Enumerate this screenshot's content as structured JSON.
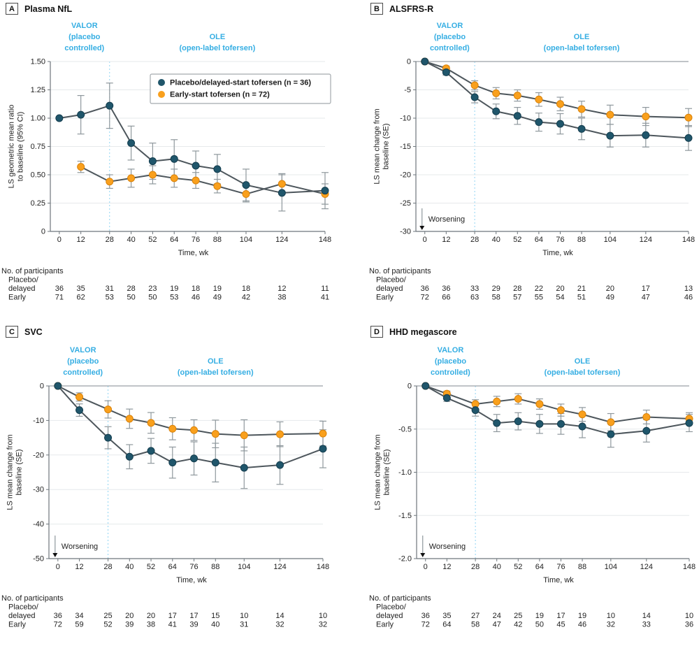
{
  "colors": {
    "phase_label": "#35aee3",
    "phase_divider": "#8fd4f3",
    "series_line": "#4d565c",
    "error_bar": "#8f989d",
    "axis": "#6e767c",
    "grid": "#e6e9eb",
    "zero_line": "#9aa1a7"
  },
  "series_colors": {
    "teal": {
      "fill": "#20566b",
      "stroke": "#143d4e"
    },
    "orange": {
      "fill": "#f9a01d",
      "stroke": "#d9820a"
    }
  },
  "x": {
    "weeks": [
      0,
      12,
      28,
      40,
      52,
      64,
      76,
      88,
      104,
      124,
      148
    ],
    "tick_labels": [
      "0",
      "12",
      "28",
      "40",
      "52",
      "64",
      "76",
      "88",
      "104",
      "124",
      "148"
    ],
    "label": "Time, wk",
    "divider_week": 28
  },
  "phase_labels": {
    "valor_lines": [
      "VALOR",
      "(placebo",
      "controlled)"
    ],
    "ole_lines": [
      "OLE",
      "(open-label tofersen)"
    ]
  },
  "legend": {
    "items": [
      {
        "label": "Placebo/delayed-start tofersen (n = 36)",
        "color_key": "teal"
      },
      {
        "label": "Early-start tofersen (n = 72)",
        "color_key": "orange"
      }
    ]
  },
  "chart_data": [
    {
      "id": "A",
      "title": "Plasma NfL",
      "type": "line",
      "ylabel_lines": [
        "LS geometric mean ratio",
        "to baseline (95% CI)"
      ],
      "ylim": [
        0,
        1.5
      ],
      "ytick_values": [
        1.5,
        1.25,
        1.0,
        0.75,
        0.5,
        0.25,
        0
      ],
      "ytick_labels": [
        "1.50",
        "1.25",
        "1.00",
        "0.75",
        "0.50",
        "0.25",
        "0"
      ],
      "zero_top": false,
      "worsening_label": null,
      "show_legend": true,
      "series": [
        {
          "name": "Placebo/delayed-start tofersen (n = 36)",
          "color_key": "teal",
          "x": [
            0,
            12,
            28,
            40,
            52,
            64,
            76,
            88,
            104,
            124,
            148
          ],
          "y": [
            1.0,
            1.03,
            1.11,
            0.78,
            0.62,
            0.64,
            0.58,
            0.55,
            0.41,
            0.34,
            0.36
          ],
          "err": [
            0,
            0.17,
            0.2,
            0.15,
            0.16,
            0.17,
            0.13,
            0.13,
            0.14,
            0.16,
            0.16
          ]
        },
        {
          "name": "Early-start tofersen (n = 72)",
          "color_key": "orange",
          "x": [
            12,
            28,
            40,
            52,
            64,
            76,
            88,
            104,
            124,
            148
          ],
          "y": [
            0.57,
            0.44,
            0.47,
            0.5,
            0.47,
            0.45,
            0.4,
            0.33,
            0.42,
            0.33
          ],
          "err": [
            0.05,
            0.06,
            0.08,
            0.08,
            0.08,
            0.07,
            0.06,
            0.07,
            0.09,
            0.09
          ]
        }
      ],
      "participants": {
        "header": "No. of participants",
        "rows": [
          {
            "label_lines": [
              "Placebo/",
              "delayed"
            ],
            "values": [
              36,
              35,
              31,
              28,
              23,
              19,
              18,
              19,
              18,
              12,
              11
            ]
          },
          {
            "label_lines": [
              "Early"
            ],
            "values": [
              71,
              62,
              53,
              50,
              50,
              53,
              46,
              49,
              42,
              38,
              41
            ]
          }
        ]
      }
    },
    {
      "id": "B",
      "title": "ALSFRS-R",
      "type": "line",
      "ylabel_lines": [
        "LS mean change from",
        "baseline (SE)"
      ],
      "ylim": [
        -30,
        0
      ],
      "ytick_values": [
        0,
        -5,
        -10,
        -15,
        -20,
        -25,
        -30
      ],
      "ytick_labels": [
        "0",
        "-5",
        "-10",
        "-15",
        "-20",
        "-25",
        "-30"
      ],
      "zero_top": true,
      "worsening_label": "Worsening",
      "show_legend": false,
      "series": [
        {
          "name": "Placebo/delayed-start tofersen (n = 36)",
          "color_key": "teal",
          "x": [
            0,
            12,
            28,
            40,
            52,
            64,
            76,
            88,
            104,
            124,
            148
          ],
          "y": [
            0,
            -1.9,
            -6.3,
            -8.8,
            -9.6,
            -10.7,
            -11.0,
            -11.9,
            -13.1,
            -13.0,
            -13.5
          ],
          "err": [
            0,
            0.5,
            1.0,
            1.3,
            1.5,
            1.6,
            1.8,
            1.9,
            2.0,
            2.1,
            2.2
          ]
        },
        {
          "name": "Early-start tofersen (n = 72)",
          "color_key": "orange",
          "x": [
            0,
            12,
            28,
            40,
            52,
            64,
            76,
            88,
            104,
            124,
            148
          ],
          "y": [
            0,
            -1.2,
            -4.2,
            -5.6,
            -6.0,
            -6.7,
            -7.5,
            -8.4,
            -9.4,
            -9.7,
            -9.9
          ],
          "err": [
            0,
            0.4,
            0.8,
            1.0,
            1.0,
            1.2,
            1.2,
            1.4,
            1.7,
            1.6,
            1.6
          ]
        }
      ],
      "participants": {
        "header": "No. of participants",
        "rows": [
          {
            "label_lines": [
              "Placebo/",
              "delayed"
            ],
            "values": [
              36,
              36,
              33,
              29,
              28,
              22,
              20,
              21,
              20,
              17,
              13
            ]
          },
          {
            "label_lines": [
              "Early"
            ],
            "values": [
              72,
              66,
              63,
              58,
              57,
              55,
              54,
              51,
              49,
              47,
              46
            ]
          }
        ]
      }
    },
    {
      "id": "C",
      "title": "SVC",
      "type": "line",
      "ylabel_lines": [
        "LS mean change from",
        "baseline (SE)"
      ],
      "ylim": [
        -50,
        0
      ],
      "ytick_values": [
        0,
        -10,
        -20,
        -30,
        -40,
        -50
      ],
      "ytick_labels": [
        "0",
        "-10",
        "-20",
        "-30",
        "-40",
        "-50"
      ],
      "zero_top": true,
      "worsening_label": "Worsening",
      "show_legend": false,
      "series": [
        {
          "name": "Placebo/delayed-start tofersen (n = 36)",
          "color_key": "teal",
          "x": [
            0,
            12,
            28,
            40,
            52,
            64,
            76,
            88,
            104,
            124,
            148
          ],
          "y": [
            0,
            -7.0,
            -15.0,
            -20.5,
            -18.8,
            -22.2,
            -21.0,
            -22.2,
            -23.7,
            -22.9,
            -18.2
          ],
          "err": [
            0,
            1.8,
            3.2,
            3.5,
            3.6,
            4.5,
            4.8,
            5.6,
            6.0,
            5.6,
            5.5
          ]
        },
        {
          "name": "Early-start tofersen (n = 72)",
          "color_key": "orange",
          "x": [
            0,
            12,
            28,
            40,
            52,
            64,
            76,
            88,
            104,
            124,
            148
          ],
          "y": [
            0,
            -3.2,
            -6.8,
            -9.5,
            -10.7,
            -12.4,
            -12.8,
            -13.9,
            -14.3,
            -14.0,
            -13.8
          ],
          "err": [
            0,
            1.2,
            2.5,
            2.8,
            3.0,
            3.2,
            3.0,
            4.0,
            4.5,
            3.6,
            3.6
          ]
        }
      ],
      "participants": {
        "header": "No. of participants",
        "rows": [
          {
            "label_lines": [
              "Placebo/",
              "delayed"
            ],
            "values": [
              36,
              34,
              25,
              20,
              20,
              17,
              17,
              15,
              10,
              14,
              10
            ]
          },
          {
            "label_lines": [
              "Early"
            ],
            "values": [
              72,
              59,
              52,
              39,
              38,
              41,
              39,
              40,
              31,
              32,
              32
            ]
          }
        ]
      }
    },
    {
      "id": "D",
      "title": "HHD megascore",
      "type": "line",
      "ylabel_lines": [
        "LS mean change from",
        "baseline (SE)"
      ],
      "ylim": [
        -2.0,
        0
      ],
      "ytick_values": [
        0,
        -0.5,
        -1.0,
        -1.5,
        -2.0
      ],
      "ytick_labels": [
        "0",
        "-0.5",
        "-1.0",
        "-1.5",
        "-2.0"
      ],
      "zero_top": true,
      "worsening_label": "Worsening",
      "show_legend": false,
      "series": [
        {
          "name": "Placebo/delayed-start tofersen (n = 36)",
          "color_key": "teal",
          "x": [
            0,
            12,
            28,
            40,
            52,
            64,
            76,
            88,
            104,
            124,
            148
          ],
          "y": [
            0,
            -0.14,
            -0.28,
            -0.43,
            -0.41,
            -0.44,
            -0.44,
            -0.47,
            -0.56,
            -0.52,
            -0.43
          ],
          "err": [
            0,
            0.04,
            0.07,
            0.1,
            0.1,
            0.11,
            0.12,
            0.13,
            0.15,
            0.13,
            0.1
          ]
        },
        {
          "name": "Early-start tofersen (n = 72)",
          "color_key": "orange",
          "x": [
            0,
            12,
            28,
            40,
            52,
            64,
            76,
            88,
            104,
            124,
            148
          ],
          "y": [
            0,
            -0.09,
            -0.21,
            -0.18,
            -0.15,
            -0.21,
            -0.28,
            -0.33,
            -0.42,
            -0.36,
            -0.38
          ],
          "err": [
            0,
            0.03,
            0.05,
            0.06,
            0.06,
            0.06,
            0.07,
            0.08,
            0.1,
            0.08,
            0.07
          ]
        }
      ],
      "participants": {
        "header": "No. of participants",
        "rows": [
          {
            "label_lines": [
              "Placebo/",
              "delayed"
            ],
            "values": [
              36,
              35,
              27,
              24,
              25,
              19,
              17,
              19,
              10,
              14,
              10
            ]
          },
          {
            "label_lines": [
              "Early"
            ],
            "values": [
              72,
              64,
              58,
              47,
              42,
              50,
              45,
              46,
              32,
              33,
              36
            ]
          }
        ]
      }
    }
  ]
}
